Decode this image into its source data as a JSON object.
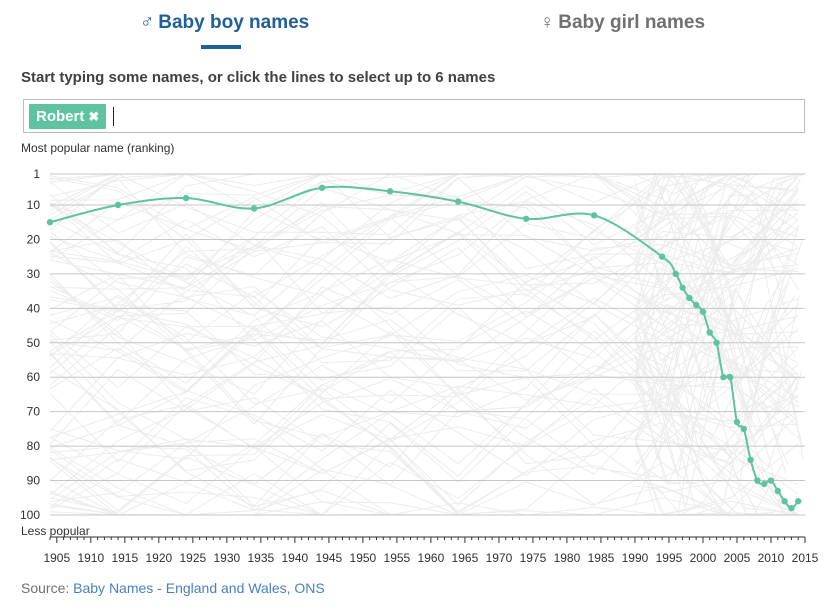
{
  "tabs": {
    "boy": {
      "symbol": "♂",
      "label": "Baby boy names"
    },
    "girl": {
      "symbol": "♀",
      "label": "Baby girl names"
    }
  },
  "instruction": "Start typing some names, or click the lines to select up to 6 names",
  "selected_names": [
    {
      "label": "Robert",
      "remove_glyph": "✖"
    }
  ],
  "colors": {
    "accent": "#206095",
    "selected_line": "#5fc3a1",
    "background_lines": "#ececec",
    "inactive_tab": "#707071"
  },
  "source": {
    "prefix": "Source: ",
    "link_text": "Baby Names - England and Wales, ONS"
  },
  "chart_data": {
    "type": "line",
    "title": "",
    "ylabel": "Most popular name (ranking)",
    "ylabel_bottom": "Less popular",
    "xlabel": "",
    "y_reversed": true,
    "ylim": [
      1,
      100
    ],
    "xlim": [
      1904,
      2015
    ],
    "yticks": [
      1,
      10,
      20,
      30,
      40,
      50,
      60,
      70,
      80,
      90,
      100
    ],
    "xticks": [
      1905,
      1910,
      1915,
      1920,
      1925,
      1930,
      1935,
      1940,
      1945,
      1950,
      1955,
      1960,
      1965,
      1970,
      1975,
      1980,
      1985,
      1990,
      1995,
      2000,
      2005,
      2010,
      2015
    ],
    "grid": true,
    "series": [
      {
        "name": "Robert",
        "x": [
          1904,
          1914,
          1924,
          1934,
          1944,
          1954,
          1964,
          1974,
          1984,
          1994,
          1996,
          1997,
          1998,
          1999,
          2000,
          2001,
          2002,
          2003,
          2004,
          2005,
          2006,
          2007,
          2008,
          2009,
          2010,
          2011,
          2012,
          2013,
          2014
        ],
        "y": [
          15,
          10,
          8,
          11,
          5,
          6,
          9,
          14,
          13,
          25,
          30,
          34,
          37,
          39,
          41,
          47,
          50,
          60,
          60,
          73,
          75,
          84,
          90,
          91,
          90,
          93,
          96,
          98,
          96
        ]
      }
    ]
  }
}
